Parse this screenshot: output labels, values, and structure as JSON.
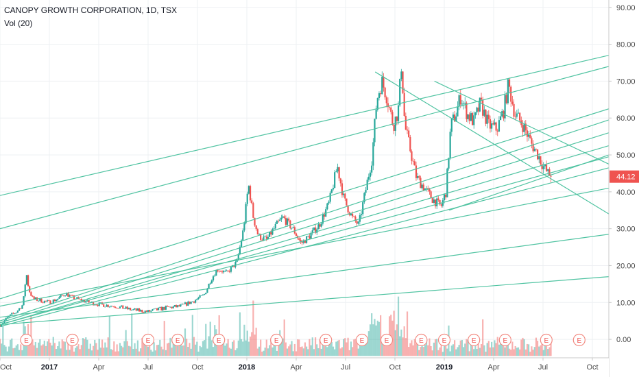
{
  "legend": {
    "title": "CANOPY GROWTH CORPORATION, 1D, TSX",
    "indicator": "Vol (20)"
  },
  "colors": {
    "up": "#26a69a",
    "down": "#ef5350",
    "trendline": "#4fc3a1",
    "last_price_bg": "#ef5350",
    "grid": "#eef0f3",
    "axis": "#c8c8c8"
  },
  "chart_data": {
    "type": "candlestick",
    "price_axis": {
      "ticks": [
        "90.00",
        "80.00",
        "70.00",
        "60.00",
        "50.00",
        "40.00",
        "30.00",
        "20.00",
        "10.00",
        "0.00"
      ],
      "ylim": [
        -5,
        92
      ],
      "last_price": "44.12"
    },
    "time_axis": {
      "ticks": [
        {
          "label": "Oct",
          "bold": false,
          "t": 0
        },
        {
          "label": "2017",
          "bold": true,
          "t": 3
        },
        {
          "label": "Apr",
          "bold": false,
          "t": 6
        },
        {
          "label": "Jul",
          "bold": false,
          "t": 9
        },
        {
          "label": "Oct",
          "bold": false,
          "t": 12
        },
        {
          "label": "2018",
          "bold": true,
          "t": 15
        },
        {
          "label": "Apr",
          "bold": false,
          "t": 18
        },
        {
          "label": "Jul",
          "bold": false,
          "t": 21
        },
        {
          "label": "Oct",
          "bold": false,
          "t": 24
        },
        {
          "label": "2019",
          "bold": true,
          "t": 27
        },
        {
          "label": "Apr",
          "bold": false,
          "t": 30
        },
        {
          "label": "Jul",
          "bold": false,
          "t": 33
        },
        {
          "label": "Oct",
          "bold": false,
          "t": 36
        }
      ],
      "range_months": [
        0,
        37
      ]
    },
    "price_path": [
      [
        0,
        4.0
      ],
      [
        0.5,
        6.0
      ],
      [
        1.0,
        7.5
      ],
      [
        1.4,
        9.5
      ],
      [
        1.6,
        18.0
      ],
      [
        1.75,
        13.5
      ],
      [
        2.0,
        11.0
      ],
      [
        2.5,
        10.5
      ],
      [
        3.0,
        10.0
      ],
      [
        3.5,
        11.0
      ],
      [
        4.0,
        12.5
      ],
      [
        4.3,
        11.5
      ],
      [
        5.0,
        10.5
      ],
      [
        6.0,
        9.5
      ],
      [
        7.0,
        9.0
      ],
      [
        8.0,
        8.0
      ],
      [
        9.0,
        7.5
      ],
      [
        10.0,
        8.5
      ],
      [
        11.0,
        9.0
      ],
      [
        11.8,
        10.5
      ],
      [
        12.4,
        12.0
      ],
      [
        12.8,
        16.0
      ],
      [
        13.2,
        19.0
      ],
      [
        13.8,
        18.0
      ],
      [
        14.4,
        21.0
      ],
      [
        14.8,
        30.0
      ],
      [
        15.1,
        42.0
      ],
      [
        15.4,
        33.0
      ],
      [
        15.7,
        28.0
      ],
      [
        16.2,
        27.0
      ],
      [
        16.8,
        31.0
      ],
      [
        17.2,
        33.0
      ],
      [
        17.8,
        30.0
      ],
      [
        18.3,
        26.0
      ],
      [
        18.8,
        28.0
      ],
      [
        19.4,
        31.0
      ],
      [
        20.0,
        37.0
      ],
      [
        20.5,
        47.0
      ],
      [
        20.9,
        38.0
      ],
      [
        21.4,
        33.0
      ],
      [
        21.8,
        31.0
      ],
      [
        22.2,
        40.0
      ],
      [
        22.6,
        49.0
      ],
      [
        22.9,
        65.0
      ],
      [
        23.2,
        70.0
      ],
      [
        23.5,
        66.0
      ],
      [
        23.9,
        58.0
      ],
      [
        24.2,
        62.0
      ],
      [
        24.4,
        75.0
      ],
      [
        24.6,
        58.0
      ],
      [
        24.9,
        52.0
      ],
      [
        25.3,
        44.0
      ],
      [
        25.8,
        41.0
      ],
      [
        26.3,
        38.0
      ],
      [
        26.8,
        36.0
      ],
      [
        27.1,
        40.0
      ],
      [
        27.4,
        58.0
      ],
      [
        27.7,
        61.0
      ],
      [
        28.0,
        66.0
      ],
      [
        28.4,
        61.0
      ],
      [
        28.8,
        59.0
      ],
      [
        29.2,
        64.0
      ],
      [
        29.7,
        58.0
      ],
      [
        30.2,
        57.0
      ],
      [
        30.6,
        62.0
      ],
      [
        30.9,
        69.0
      ],
      [
        31.3,
        61.0
      ],
      [
        31.8,
        58.0
      ],
      [
        32.3,
        53.0
      ],
      [
        32.7,
        50.0
      ],
      [
        33.0,
        47.0
      ],
      [
        33.3,
        45.0
      ],
      [
        33.5,
        44.12
      ]
    ],
    "trendlines": [
      [
        [
          0,
          39
        ],
        [
          37,
          77
        ]
      ],
      [
        [
          0,
          30
        ],
        [
          37,
          74
        ]
      ],
      [
        [
          0,
          11
        ],
        [
          37,
          62.5
        ]
      ],
      [
        [
          0,
          5
        ],
        [
          37,
          59.5
        ]
      ],
      [
        [
          0,
          4.5
        ],
        [
          37,
          56
        ]
      ],
      [
        [
          0,
          4
        ],
        [
          37,
          52.5
        ]
      ],
      [
        [
          0,
          4
        ],
        [
          37,
          49.5
        ]
      ],
      [
        [
          0,
          3.5
        ],
        [
          37,
          46.5
        ]
      ],
      [
        [
          0,
          9
        ],
        [
          37,
          41
        ]
      ],
      [
        [
          0,
          6
        ],
        [
          37,
          28.5
        ]
      ],
      [
        [
          0,
          4
        ],
        [
          37,
          17
        ]
      ],
      [
        [
          22.8,
          72.5
        ],
        [
          37,
          34
        ]
      ],
      [
        [
          26.4,
          70.0
        ],
        [
          37,
          47.5
        ]
      ],
      [
        [
          27.3,
          35.0
        ],
        [
          37,
          50.0
        ]
      ]
    ],
    "earnings_markers": {
      "label": "E",
      "t": [
        1.6,
        4.4,
        9.0,
        10.8,
        13.3,
        16.8,
        19.8,
        22.0,
        23.5,
        25.6,
        27.0,
        28.8,
        30.7,
        33.2,
        35.2
      ]
    }
  }
}
